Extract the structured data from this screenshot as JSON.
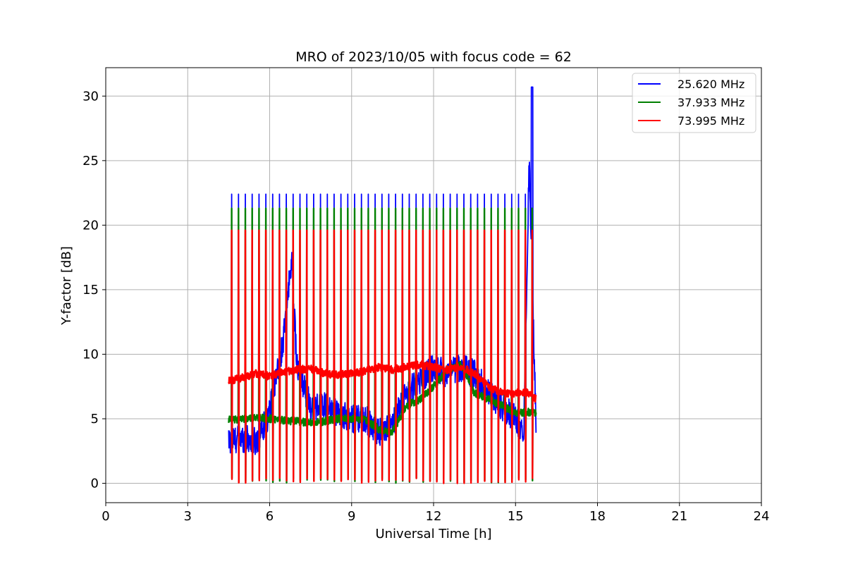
{
  "chart_data": {
    "type": "line",
    "title": "MRO of 2023/10/05 with focus code = 62",
    "xlabel": "Universal Time [h]",
    "ylabel": "Y-factor [dB]",
    "xlim": [
      0,
      24
    ],
    "ylim": [
      -1.5,
      32.2
    ],
    "xticks": [
      0,
      3,
      6,
      9,
      12,
      15,
      18,
      21,
      24
    ],
    "yticks": [
      0,
      5,
      10,
      15,
      20,
      25,
      30
    ],
    "grid": true,
    "legend_position": "top-right",
    "series": [
      {
        "name": "25.620 MHz",
        "color": "#0000ff",
        "x": [
          4.5,
          5.0,
          5.5,
          6.0,
          6.5,
          6.8,
          7.0,
          7.5,
          8.0,
          8.5,
          9.0,
          9.5,
          10.0,
          10.5,
          11.0,
          11.5,
          12.0,
          12.5,
          13.0,
          13.5,
          14.0,
          14.5,
          15.0,
          15.3,
          15.5,
          15.75
        ],
        "y": [
          3.3,
          3.5,
          3.2,
          5.5,
          11.0,
          17.5,
          9.0,
          6.0,
          6.0,
          5.5,
          5.0,
          5.0,
          4.0,
          4.5,
          7.0,
          8.0,
          9.0,
          8.5,
          9.0,
          8.5,
          7.0,
          6.0,
          5.0,
          4.0,
          25.0,
          4.5
        ],
        "spike_peak": 22.4,
        "spike_low": 0.3,
        "max_value": 30.7
      },
      {
        "name": "37.933 MHz",
        "color": "#008000",
        "x": [
          4.5,
          5.0,
          5.5,
          6.0,
          6.5,
          7.0,
          7.5,
          8.0,
          8.5,
          9.0,
          9.5,
          10.0,
          10.5,
          11.0,
          11.5,
          12.0,
          12.5,
          13.0,
          13.5,
          14.0,
          14.5,
          15.0,
          15.5,
          15.75
        ],
        "y": [
          4.9,
          5.0,
          5.1,
          5.0,
          4.9,
          4.8,
          4.7,
          4.8,
          5.0,
          5.0,
          4.9,
          4.2,
          4.0,
          6.0,
          6.5,
          7.5,
          8.8,
          9.2,
          7.0,
          6.5,
          6.0,
          5.5,
          5.5,
          5.5
        ],
        "spike_peak": 21.3,
        "spike_low": 0.0
      },
      {
        "name": "73.995 MHz",
        "color": "#ff0000",
        "x": [
          4.5,
          5.0,
          5.5,
          6.0,
          6.5,
          7.0,
          7.5,
          8.0,
          8.5,
          9.0,
          9.5,
          10.0,
          10.5,
          11.0,
          11.5,
          12.0,
          12.5,
          13.0,
          13.5,
          14.0,
          14.5,
          15.0,
          15.5,
          15.75
        ],
        "y": [
          7.9,
          8.2,
          8.5,
          8.3,
          8.6,
          8.8,
          8.9,
          8.5,
          8.4,
          8.5,
          8.7,
          9.0,
          8.8,
          9.0,
          9.2,
          9.0,
          8.8,
          9.0,
          8.5,
          7.5,
          7.0,
          7.0,
          7.0,
          6.5
        ],
        "spike_peak": 19.6,
        "spike_low": 0.0
      }
    ]
  }
}
